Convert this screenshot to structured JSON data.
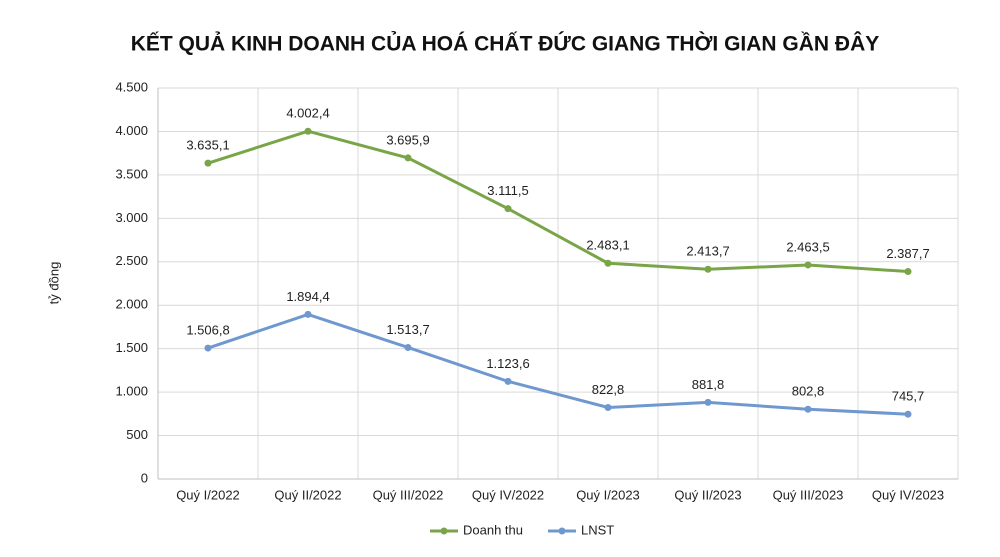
{
  "chart_data": {
    "type": "line",
    "title": "KẾT QUẢ KINH DOANH CỦA HOÁ CHẤT ĐỨC GIANG THỜI GIAN GẦN ĐÂY",
    "y_label": "tỷ đồng",
    "categories": [
      "Quý I/2022",
      "Quý II/2022",
      "Quý III/2022",
      "Quý IV/2022",
      "Quý I/2023",
      "Quý II/2023",
      "Quý III/2023",
      "Quý IV/2023"
    ],
    "series": [
      {
        "name": "Doanh thu",
        "color": "#79a548",
        "values": [
          3635.1,
          4002.4,
          3695.9,
          3111.5,
          2483.1,
          2413.7,
          2463.5,
          2387.7
        ],
        "value_labels": [
          "3.635,1",
          "4.002,4",
          "3.695,9",
          "3.111,5",
          "2.483,1",
          "2.413,7",
          "2.463,5",
          "2.387,7"
        ]
      },
      {
        "name": "LNST",
        "color": "#6f98cf",
        "values": [
          1506.8,
          1894.4,
          1513.7,
          1123.6,
          822.8,
          881.8,
          802.8,
          745.7
        ],
        "value_labels": [
          "1.506,8",
          "1.894,4",
          "1.513,7",
          "1.123,6",
          "822,8",
          "881,8",
          "802,8",
          "745,7"
        ]
      }
    ],
    "ylim": [
      0,
      4500
    ],
    "yticks": [
      0,
      500,
      {
        "value": 1000,
        "label": "1.000"
      },
      {
        "value": 1500,
        "label": "1.500"
      },
      {
        "value": 2000,
        "label": "2.000"
      },
      {
        "value": 2500,
        "label": "2.500"
      },
      {
        "value": 3000,
        "label": "3.000"
      },
      {
        "value": 3500,
        "label": "3.500"
      },
      {
        "value": 4000,
        "label": "4.000"
      },
      {
        "value": 4500,
        "label": "4.500"
      }
    ],
    "grid": true,
    "legend": "bottom"
  }
}
